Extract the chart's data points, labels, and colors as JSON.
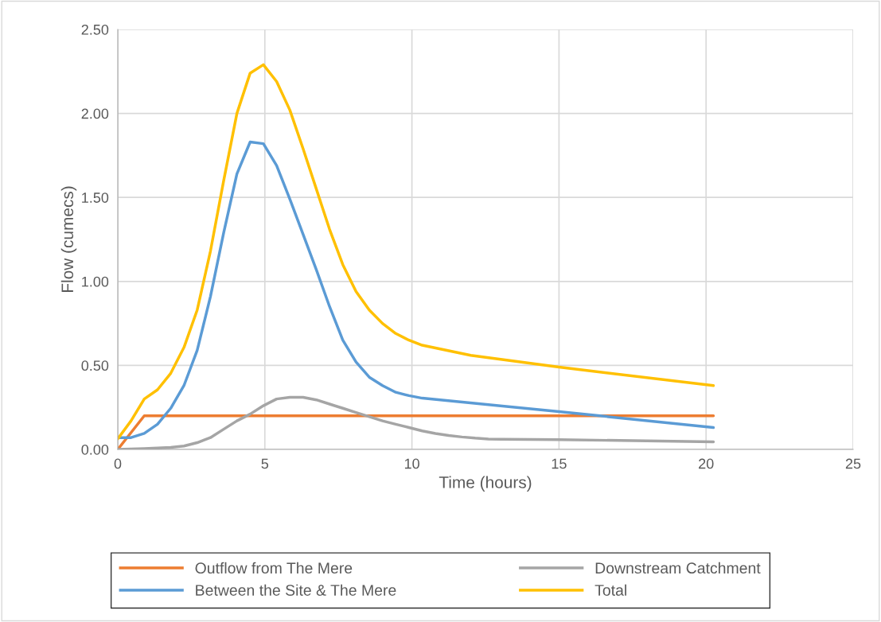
{
  "chart_data": {
    "type": "line",
    "xlabel": "Time (hours)",
    "ylabel": "Flow (cumecs)",
    "xlim": [
      0,
      25
    ],
    "xticks": [
      0,
      5,
      10,
      15,
      20,
      25
    ],
    "ylim": [
      0,
      2.5
    ],
    "yticks": [
      {
        "value": 0,
        "label": "0.00"
      },
      {
        "value": 0.5,
        "label": "0.50"
      },
      {
        "value": 1,
        "label": "1.00"
      },
      {
        "value": 1.5,
        "label": "1.50"
      },
      {
        "value": 2,
        "label": "2.00"
      },
      {
        "value": 2.5,
        "label": "2.50"
      }
    ],
    "grid": true,
    "legend": "bottom",
    "marker": "none",
    "line_style": "solid",
    "series": [
      {
        "name": "Outflow from The Mere",
        "color": "#ed7d31",
        "x": [
          0,
          0.9,
          20.25
        ],
        "values": [
          0,
          0.2,
          0.2
        ]
      },
      {
        "name": "Between the Site & The Mere",
        "color": "#5b9bd5",
        "x": [
          0,
          0.45,
          0.9,
          1.35,
          1.8,
          2.25,
          2.7,
          3.15,
          3.6,
          4.05,
          4.5,
          4.95,
          5.4,
          5.85,
          6.3,
          6.75,
          7.2,
          7.65,
          8.1,
          8.55,
          9.0,
          9.45,
          9.9,
          10.35,
          15,
          20.25
        ],
        "values": [
          0.07,
          0.07,
          0.095,
          0.15,
          0.245,
          0.38,
          0.59,
          0.91,
          1.29,
          1.64,
          1.83,
          1.82,
          1.69,
          1.49,
          1.28,
          1.07,
          0.85,
          0.65,
          0.52,
          0.43,
          0.38,
          0.34,
          0.32,
          0.305,
          0.225,
          0.13
        ]
      },
      {
        "name": "Downstream Catchment",
        "color": "#a5a5a5",
        "x": [
          0,
          0.45,
          0.9,
          1.35,
          1.8,
          2.25,
          2.7,
          3.15,
          3.6,
          4.05,
          4.5,
          4.95,
          5.4,
          5.85,
          6.3,
          6.75,
          7.2,
          7.65,
          8.1,
          8.55,
          9.0,
          9.45,
          9.9,
          10.35,
          10.8,
          11.25,
          11.7,
          12.15,
          12.6,
          13.05,
          15,
          20.25
        ],
        "values": [
          0,
          0.002,
          0.005,
          0.008,
          0.012,
          0.02,
          0.04,
          0.07,
          0.12,
          0.17,
          0.21,
          0.26,
          0.3,
          0.31,
          0.31,
          0.295,
          0.27,
          0.245,
          0.22,
          0.195,
          0.17,
          0.15,
          0.13,
          0.11,
          0.095,
          0.083,
          0.074,
          0.067,
          0.062,
          0.06,
          0.058,
          0.045
        ]
      },
      {
        "name": "Total",
        "color": "#ffc000",
        "x": [
          0,
          0.45,
          0.9,
          1.35,
          1.8,
          2.25,
          2.7,
          3.15,
          3.6,
          4.05,
          4.5,
          4.95,
          5.4,
          5.85,
          6.3,
          6.75,
          7.2,
          7.65,
          8.1,
          8.55,
          9.0,
          9.45,
          9.9,
          10.35,
          12,
          15,
          20.25
        ],
        "values": [
          0.063,
          0.17,
          0.3,
          0.355,
          0.453,
          0.607,
          0.83,
          1.18,
          1.6,
          2.0,
          2.24,
          2.29,
          2.19,
          2.02,
          1.79,
          1.55,
          1.31,
          1.1,
          0.94,
          0.83,
          0.75,
          0.69,
          0.65,
          0.62,
          0.56,
          0.49,
          0.38
        ]
      }
    ]
  }
}
